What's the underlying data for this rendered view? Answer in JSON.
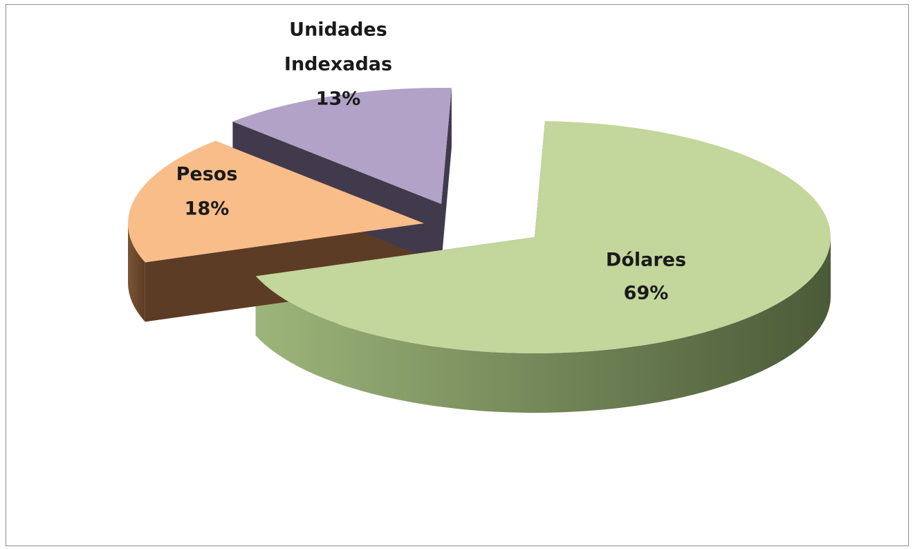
{
  "chart_data": {
    "type": "pie",
    "title": "",
    "three_d": true,
    "exploded": true,
    "legend": "none",
    "slices": [
      {
        "label_lines": [
          "Dólares"
        ],
        "value": 69,
        "percent_label": "69%",
        "color": "#c3d69b",
        "side_light": "#9db57a",
        "side_dark": "#4b5a38"
      },
      {
        "label_lines": [
          "Pesos"
        ],
        "value": 18,
        "percent_label": "18%",
        "color": "#f9bd8a",
        "side_light": "#7a5436",
        "side_dark": "#5c3c24"
      },
      {
        "label_lines": [
          "Unidades",
          "Indexadas"
        ],
        "value": 13,
        "percent_label": "13%",
        "color": "#b3a2c7",
        "side_light": "#5a5068",
        "side_dark": "#403a4c"
      }
    ]
  }
}
